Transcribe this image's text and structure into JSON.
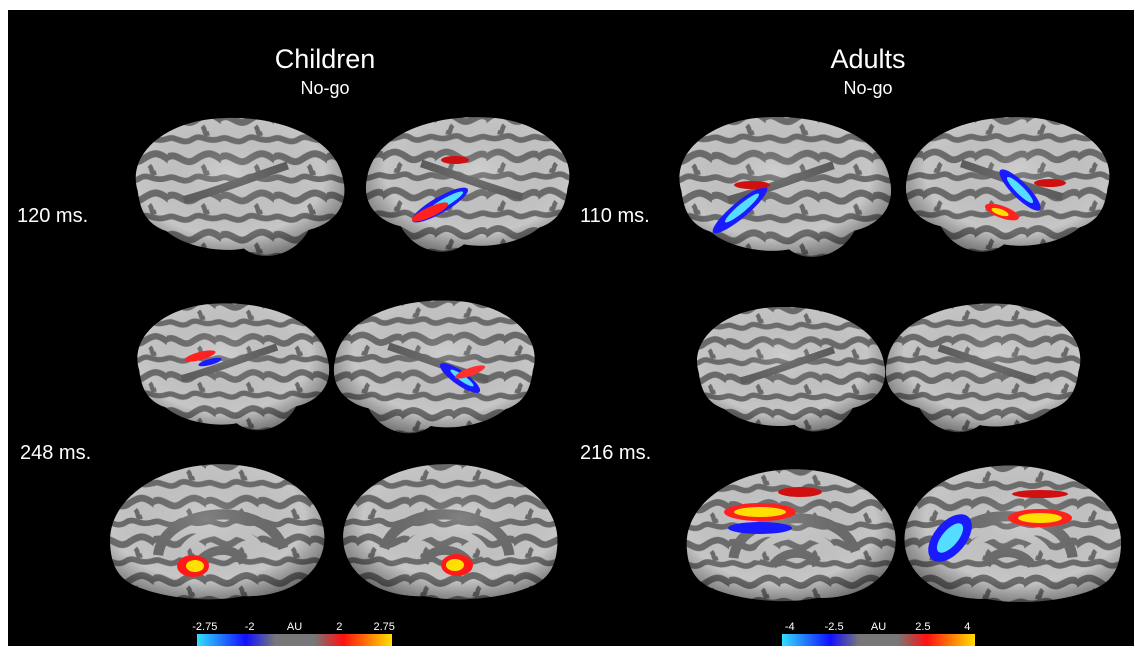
{
  "panels": [
    {
      "title": "Children",
      "subtitle": "No-go",
      "times": [
        "120 ms.",
        "248 ms."
      ],
      "colorbar": [
        "-2.75",
        "-2",
        "AU",
        "2",
        "2.75"
      ]
    },
    {
      "title": "Adults",
      "subtitle": "No-go",
      "times": [
        "110 ms.",
        "216 ms."
      ],
      "colorbar": [
        "-4",
        "-2.5",
        "AU",
        "2.5",
        "4"
      ]
    }
  ]
}
